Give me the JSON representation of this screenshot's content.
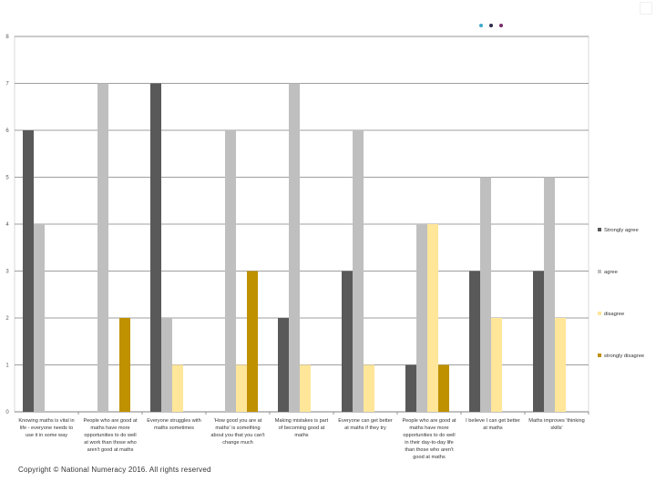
{
  "chart_data": {
    "type": "bar",
    "title": "",
    "xlabel": "",
    "ylabel": "",
    "ylim": [
      0,
      8
    ],
    "yticks": [
      0,
      1,
      2,
      3,
      4,
      5,
      6,
      7,
      8
    ],
    "grid": true,
    "legend_position": "right",
    "categories": [
      [
        "Knowing maths is vital in",
        "life - everyone needs to",
        "use it in some way"
      ],
      [
        "People who are good at",
        "maths have more",
        "opportunities to do well",
        "at work than those who",
        "aren't good at maths"
      ],
      [
        "Everyone struggles with",
        "maths sometimes"
      ],
      [
        "'How good you are at",
        "maths' is something",
        "about you that you can't",
        "change much"
      ],
      [
        "Making mistakes is part",
        "of becoming good at",
        "maths"
      ],
      [
        "Everyone can get better",
        "at maths if they try"
      ],
      [
        "People who are good at",
        "maths have more",
        "opportunities to do well",
        "in their day-to-day life",
        "than those who aren't",
        "good at maths"
      ],
      [
        "I believe I can get better",
        "at maths"
      ],
      [
        "Maths improves 'thinking",
        "skills'"
      ]
    ],
    "series": [
      {
        "name": "Strongly agree",
        "color": "#595959",
        "values": [
          6,
          0,
          7,
          0,
          2,
          3,
          1,
          3,
          3
        ]
      },
      {
        "name": "agree",
        "color": "#bfbfbf",
        "values": [
          4,
          7,
          2,
          6,
          7,
          6,
          4,
          5,
          5
        ]
      },
      {
        "name": "disagree",
        "color": "#ffe699",
        "values": [
          0,
          0,
          1,
          1,
          1,
          1,
          4,
          2,
          2
        ]
      },
      {
        "name": "strongly disagree",
        "color": "#bf9000",
        "values": [
          0,
          2,
          0,
          3,
          0,
          0,
          1,
          0,
          0
        ]
      }
    ]
  },
  "footer": {
    "copyright": "Copyright © National Numeracy 2016. All rights reserved"
  },
  "logo": {
    "dot_colors": [
      "#3fa9c9",
      "#2b2b4a",
      "#7a2a6a"
    ]
  }
}
